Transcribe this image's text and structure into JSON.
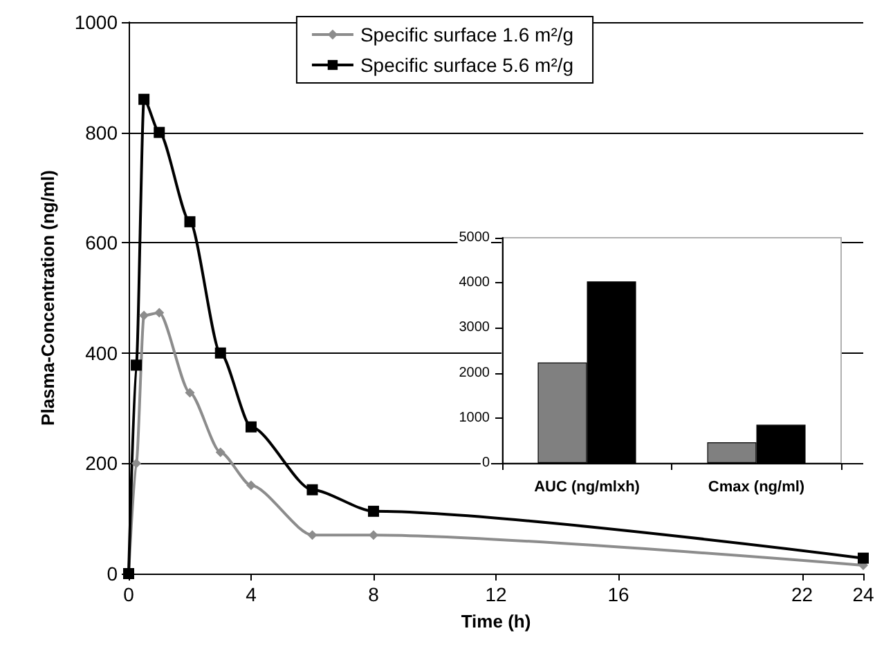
{
  "chart_data": [
    {
      "type": "line",
      "xlabel": "Time (h)",
      "ylabel": "Plasma-Concentration (ng/ml)",
      "x": [
        0,
        0.25,
        0.5,
        1,
        2,
        3,
        4,
        6,
        8,
        24
      ],
      "series": [
        {
          "name": "Specific surface 1.6 m²/g",
          "color": "#8c8c8c",
          "marker": "diamond",
          "values": [
            0,
            200,
            468,
            473,
            328,
            220,
            160,
            70,
            70,
            15
          ]
        },
        {
          "name": "Specific surface 5.6 m²/g",
          "color": "#000000",
          "marker": "square",
          "values": [
            0,
            378,
            860,
            800,
            638,
            400,
            266,
            152,
            113,
            28
          ]
        }
      ],
      "xlim": [
        0,
        24
      ],
      "xticks": [
        0,
        4,
        8,
        12,
        16,
        22,
        24
      ],
      "ylim": [
        0,
        1000
      ],
      "yticks": [
        0,
        200,
        400,
        600,
        800,
        1000
      ],
      "grid": "y",
      "legend": "top"
    },
    {
      "type": "bar",
      "categories": [
        "AUC (ng/mlxh)",
        "Cmax (ng/ml)"
      ],
      "series": [
        {
          "color": "#808080",
          "values": [
            2230,
            460
          ]
        },
        {
          "color": "#000000",
          "values": [
            4030,
            850
          ]
        }
      ],
      "ylim": [
        0,
        5000
      ],
      "yticks": [
        0,
        1000,
        2000,
        3000,
        4000,
        5000
      ],
      "grid": false,
      "legend": false
    }
  ]
}
